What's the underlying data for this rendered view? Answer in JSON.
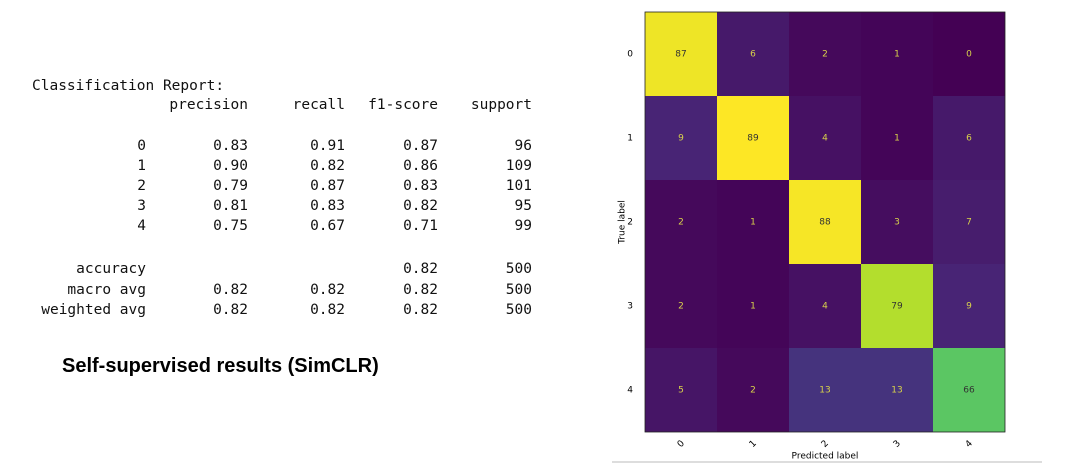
{
  "report": {
    "title": "Classification Report:",
    "header": [
      "precision",
      "recall",
      "f1-score",
      "support"
    ],
    "rows": [
      [
        "0",
        "0.83",
        "0.91",
        "0.87",
        "96"
      ],
      [
        "1",
        "0.90",
        "0.82",
        "0.86",
        "109"
      ],
      [
        "2",
        "0.79",
        "0.87",
        "0.83",
        "101"
      ],
      [
        "3",
        "0.81",
        "0.83",
        "0.82",
        "95"
      ],
      [
        "4",
        "0.75",
        "0.67",
        "0.71",
        "99"
      ],
      [
        "accuracy",
        null,
        null,
        "0.82",
        "500"
      ],
      [
        "macro avg",
        "0.82",
        "0.82",
        "0.82",
        "500"
      ],
      [
        "weighted avg",
        "0.82",
        "0.82",
        "0.82",
        "500"
      ]
    ]
  },
  "caption": "Self-supervised results (SimCLR)",
  "chart_data": {
    "type": "heatmap",
    "xlabel": "Predicted label",
    "ylabel": "True label",
    "x_categories": [
      "0",
      "1",
      "2",
      "3",
      "4"
    ],
    "y_categories": [
      "0",
      "1",
      "2",
      "3",
      "4"
    ],
    "colormap": "viridis",
    "values": [
      [
        87,
        6,
        2,
        1,
        0
      ],
      [
        9,
        89,
        4,
        1,
        6
      ],
      [
        2,
        1,
        88,
        3,
        7
      ],
      [
        2,
        1,
        4,
        79,
        9
      ],
      [
        5,
        2,
        13,
        13,
        66
      ]
    ]
  }
}
